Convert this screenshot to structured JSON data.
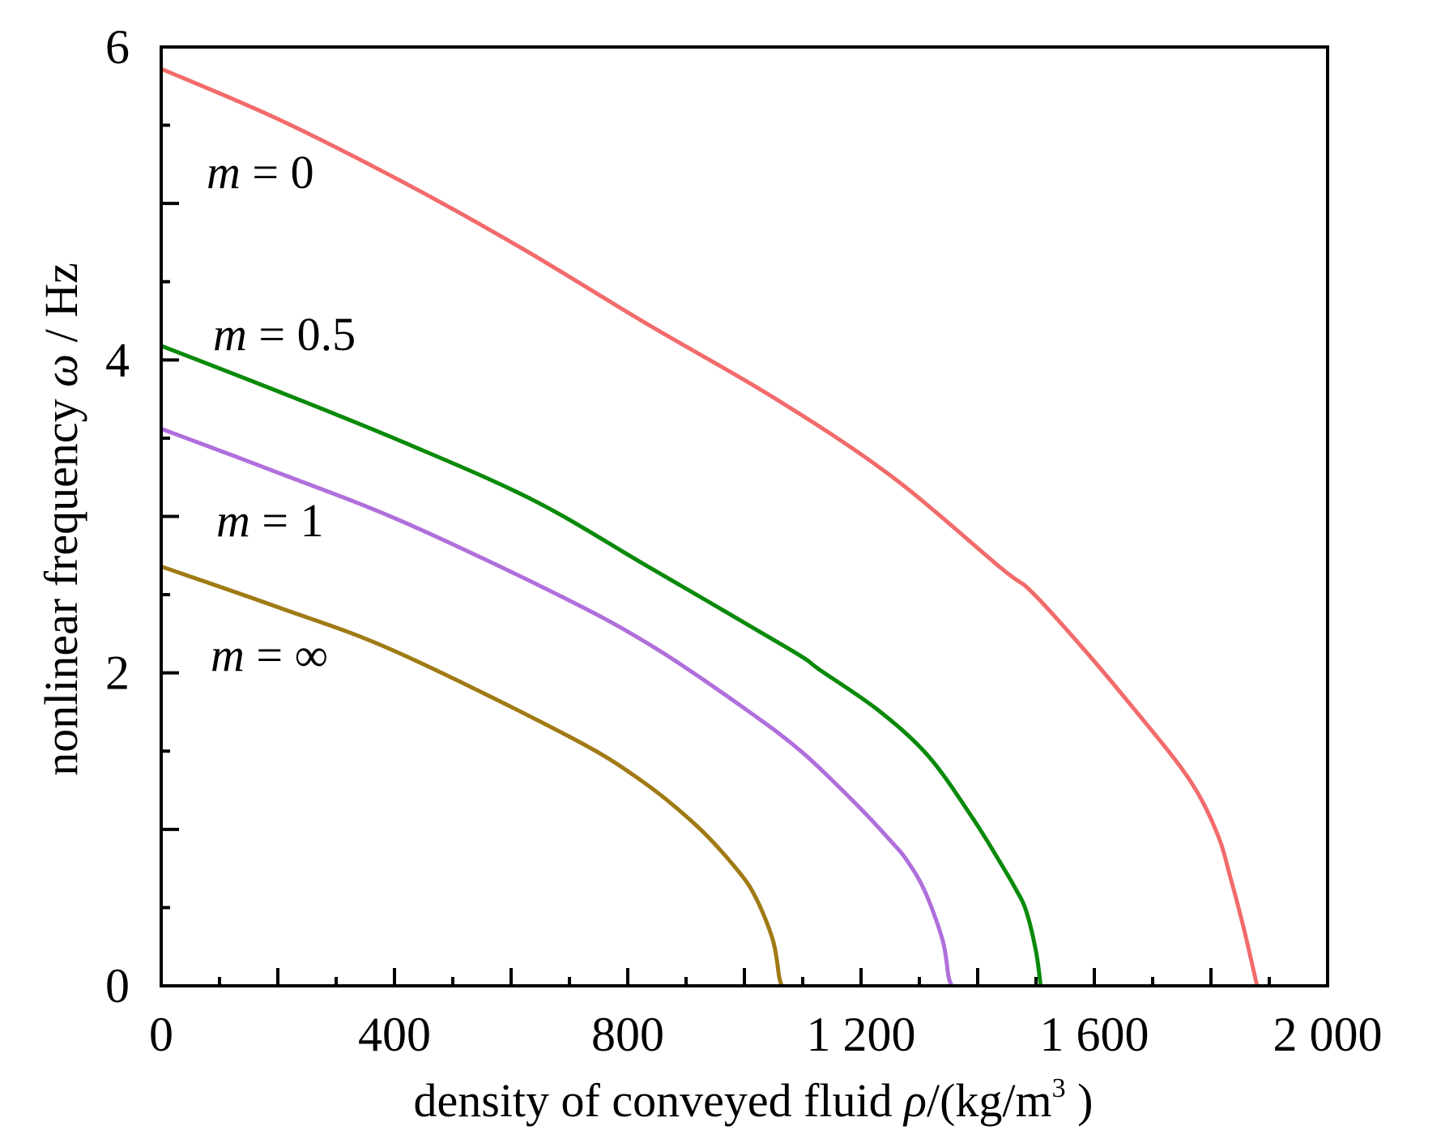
{
  "chart_data": {
    "type": "line",
    "title": "",
    "xlabel": "density of conveyed fluid ρ/(kg/m³)",
    "xlabel_parts": {
      "prefix": "density of conveyed fluid ",
      "symbol": "ρ",
      "unit": "/(kg/m",
      "sup": "3",
      "close": " )"
    },
    "ylabel": "nonlinear frequency ω / Hz",
    "ylabel_parts": {
      "prefix": "nonlinear frequency ",
      "symbol": "ω",
      "unit": " / Hz"
    },
    "xlim": [
      0,
      2000
    ],
    "ylim": [
      0,
      6
    ],
    "x_major_ticks": [
      0,
      400,
      800,
      1200,
      1600,
      2000
    ],
    "x_tick_labels": [
      "0",
      "400",
      "800",
      "1 200",
      "1 600",
      "2 000"
    ],
    "x_minor_step": 100,
    "x_mid_step": 200,
    "y_major_ticks": [
      0,
      2,
      4,
      6
    ],
    "y_tick_labels": [
      "0",
      "2",
      "4",
      "6"
    ],
    "y_minor_step": 0.5,
    "grid": false,
    "legend": "inline annotations near curve starts (left)",
    "series": [
      {
        "name": "m = 0",
        "label_var": "m",
        "label_rest": " = 0",
        "color": "#F26B6B",
        "x": [
          0,
          200,
          418,
          620,
          833,
          1050,
          1251,
          1440,
          1492,
          1580,
          1668,
          1761,
          1810,
          1835,
          1858,
          1879
        ],
        "y": [
          5.86,
          5.54,
          5.13,
          4.71,
          4.23,
          3.76,
          3.26,
          2.67,
          2.52,
          2.16,
          1.77,
          1.33,
          0.98,
          0.67,
          0.34,
          0.0
        ]
      },
      {
        "name": "m = 0.5",
        "label_var": "m",
        "label_rest": " = 0.5",
        "color": "#0A8A0A",
        "x": [
          0,
          200,
          418,
          640,
          839,
          1078,
          1129,
          1230,
          1315,
          1390,
          1440,
          1465,
          1483,
          1500,
          1508
        ],
        "y": [
          4.09,
          3.8,
          3.47,
          3.1,
          2.67,
          2.15,
          2.02,
          1.76,
          1.47,
          1.08,
          0.78,
          0.62,
          0.48,
          0.22,
          0.0
        ]
      },
      {
        "name": "m = 1",
        "label_var": "m",
        "label_rest": " = 1",
        "color": "#B06FDB",
        "x": [
          0,
          200,
          418,
          696,
          851,
          1005,
          1100,
          1192,
          1250,
          1279,
          1310,
          1340,
          1350,
          1356
        ],
        "y": [
          3.56,
          3.28,
          2.96,
          2.47,
          2.15,
          1.76,
          1.49,
          1.16,
          0.93,
          0.8,
          0.6,
          0.29,
          0.06,
          0.0
        ]
      },
      {
        "name": "m = ∞",
        "label_var": "m",
        "label_rest": " = ∞",
        "color": "#A07A14",
        "x": [
          0,
          200,
          400,
          696,
          820,
          919,
          988,
          1020,
          1049,
          1060,
          1065
        ],
        "y": [
          2.68,
          2.42,
          2.14,
          1.6,
          1.32,
          1.02,
          0.74,
          0.56,
          0.29,
          0.05,
          0.0
        ]
      }
    ]
  }
}
